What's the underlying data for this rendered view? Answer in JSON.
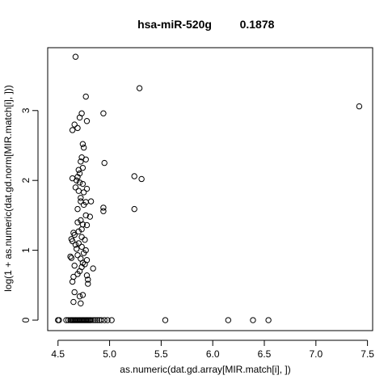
{
  "chart_data": {
    "type": "scatter",
    "title_left": "hsa-miR-520g",
    "title_right": "0.1878",
    "xlabel": "as.numeric(dat.gd.array[MIR.match[i], ])",
    "ylabel": "log(1 + as.numeric(dat.gd.norm[MIR.match[i], ]))",
    "xlim": [
      4.4,
      7.55
    ],
    "ylim": [
      -0.15,
      3.9
    ],
    "x_ticks": [
      "4.5",
      "5.0",
      "5.5",
      "6.0",
      "6.5",
      "7.0",
      "7.5"
    ],
    "y_ticks": [
      "0",
      "1",
      "2",
      "3"
    ],
    "grid": false,
    "points": [
      [
        4.67,
        3.77
      ],
      [
        4.77,
        3.2
      ],
      [
        5.29,
        3.32
      ],
      [
        7.42,
        3.06
      ],
      [
        4.94,
        2.96
      ],
      [
        4.73,
        2.96
      ],
      [
        4.71,
        2.9
      ],
      [
        4.78,
        2.85
      ],
      [
        4.66,
        2.8
      ],
      [
        4.69,
        2.75
      ],
      [
        4.64,
        2.72
      ],
      [
        4.74,
        2.52
      ],
      [
        4.75,
        2.47
      ],
      [
        4.73,
        2.33
      ],
      [
        4.77,
        2.3
      ],
      [
        4.72,
        2.27
      ],
      [
        4.95,
        2.25
      ],
      [
        4.74,
        2.18
      ],
      [
        4.7,
        2.15
      ],
      [
        4.71,
        2.1
      ],
      [
        4.69,
        2.05
      ],
      [
        4.68,
        2.0
      ],
      [
        4.64,
        2.03
      ],
      [
        5.24,
        2.06
      ],
      [
        5.31,
        2.02
      ],
      [
        4.74,
        1.95
      ],
      [
        4.71,
        1.97
      ],
      [
        4.67,
        1.9
      ],
      [
        4.78,
        1.88
      ],
      [
        4.7,
        1.85
      ],
      [
        4.75,
        1.83
      ],
      [
        4.72,
        1.75
      ],
      [
        4.72,
        1.7
      ],
      [
        4.77,
        1.69
      ],
      [
        4.82,
        1.7
      ],
      [
        4.75,
        1.65
      ],
      [
        4.94,
        1.61
      ],
      [
        4.94,
        1.56
      ],
      [
        4.69,
        1.59
      ],
      [
        5.24,
        1.59
      ],
      [
        4.77,
        1.5
      ],
      [
        4.81,
        1.48
      ],
      [
        4.72,
        1.43
      ],
      [
        4.69,
        1.4
      ],
      [
        4.74,
        1.37
      ],
      [
        4.78,
        1.36
      ],
      [
        4.73,
        1.3
      ],
      [
        4.7,
        1.27
      ],
      [
        4.65,
        1.25
      ],
      [
        4.66,
        1.22
      ],
      [
        4.73,
        1.19
      ],
      [
        4.63,
        1.16
      ],
      [
        4.64,
        1.13
      ],
      [
        4.76,
        1.15
      ],
      [
        4.7,
        1.1
      ],
      [
        4.67,
        1.08
      ],
      [
        4.73,
        1.05
      ],
      [
        4.68,
        1.02
      ],
      [
        4.77,
        1.0
      ],
      [
        4.75,
        0.96
      ],
      [
        4.69,
        0.93
      ],
      [
        4.62,
        0.91
      ],
      [
        4.63,
        0.89
      ],
      [
        4.72,
        0.88
      ],
      [
        4.78,
        0.86
      ],
      [
        4.74,
        0.82
      ],
      [
        4.76,
        0.8
      ],
      [
        4.66,
        0.78
      ],
      [
        4.73,
        0.76
      ],
      [
        4.84,
        0.74
      ],
      [
        4.71,
        0.7
      ],
      [
        4.69,
        0.66
      ],
      [
        4.78,
        0.64
      ],
      [
        4.65,
        0.62
      ],
      [
        4.79,
        0.58
      ],
      [
        4.64,
        0.55
      ],
      [
        4.79,
        0.52
      ],
      [
        4.66,
        0.4
      ],
      [
        4.74,
        0.36
      ],
      [
        4.71,
        0.34
      ],
      [
        4.65,
        0.26
      ],
      [
        4.72,
        0.24
      ],
      [
        4.5,
        0.0
      ],
      [
        4.51,
        0.0
      ],
      [
        4.58,
        0.0
      ],
      [
        4.6,
        0.0
      ],
      [
        4.62,
        0.0
      ],
      [
        4.63,
        0.0
      ],
      [
        4.64,
        0.0
      ],
      [
        4.65,
        0.0
      ],
      [
        4.66,
        0.0
      ],
      [
        4.67,
        0.0
      ],
      [
        4.68,
        0.0
      ],
      [
        4.69,
        0.0
      ],
      [
        4.7,
        0.0
      ],
      [
        4.71,
        0.0
      ],
      [
        4.72,
        0.0
      ],
      [
        4.73,
        0.0
      ],
      [
        4.74,
        0.0
      ],
      [
        4.75,
        0.0
      ],
      [
        4.76,
        0.0
      ],
      [
        4.77,
        0.0
      ],
      [
        4.78,
        0.0
      ],
      [
        4.79,
        0.0
      ],
      [
        4.8,
        0.0
      ],
      [
        4.81,
        0.0
      ],
      [
        4.82,
        0.0
      ],
      [
        4.84,
        0.0
      ],
      [
        4.86,
        0.0
      ],
      [
        4.88,
        0.0
      ],
      [
        4.9,
        0.0
      ],
      [
        4.92,
        0.0
      ],
      [
        4.95,
        0.0
      ],
      [
        4.98,
        0.0
      ],
      [
        5.02,
        0.0
      ],
      [
        5.54,
        0.0
      ],
      [
        6.15,
        0.0
      ],
      [
        6.39,
        0.0
      ],
      [
        6.54,
        0.0
      ]
    ]
  }
}
